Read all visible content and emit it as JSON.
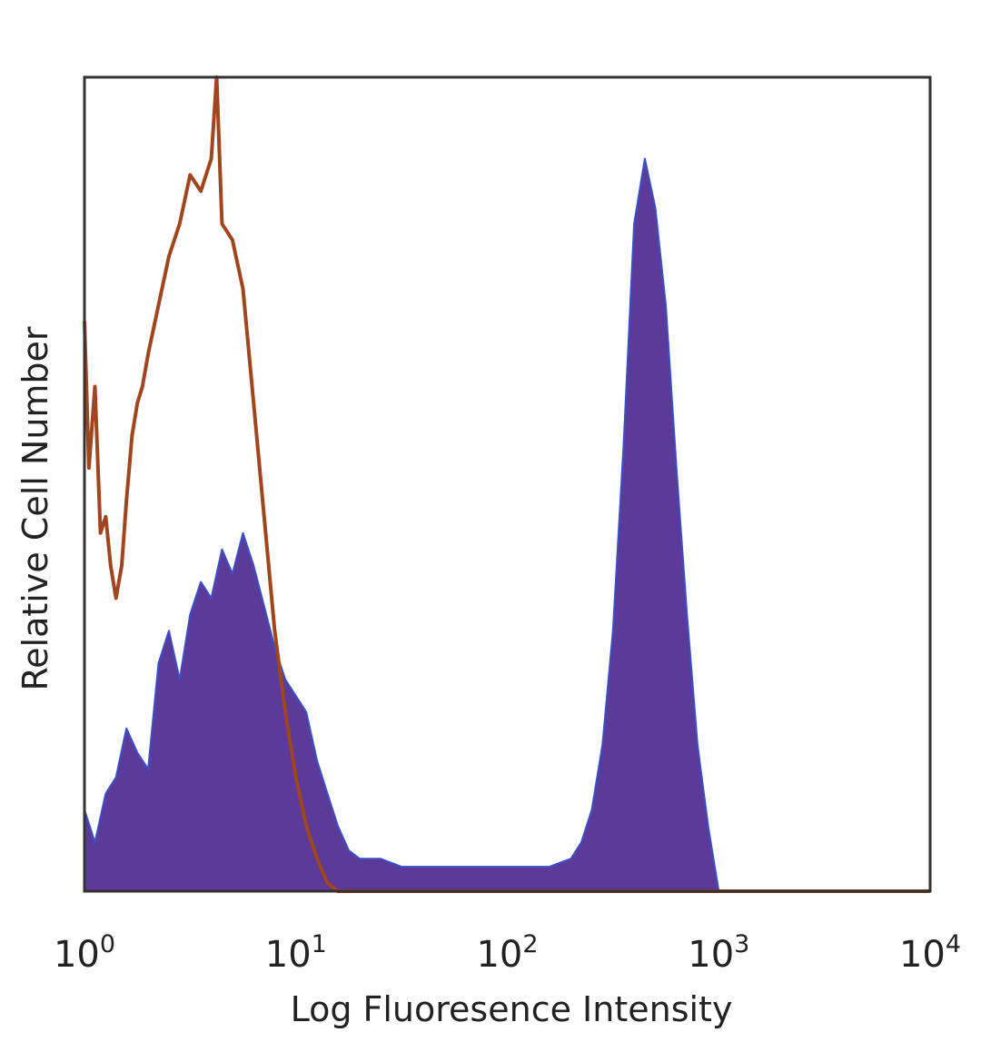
{
  "chart_data": {
    "type": "area",
    "scale": "log",
    "xlabel": "Log Fluoresence Intensity",
    "ylabel": "Relative Cell Number",
    "xlim": [
      1,
      10000
    ],
    "ylim": [
      0,
      100
    ],
    "grid": false,
    "x_ticks": [
      {
        "value": 1,
        "base": "10",
        "exp": "0"
      },
      {
        "value": 10,
        "base": "10",
        "exp": "1"
      },
      {
        "value": 100,
        "base": "10",
        "exp": "2"
      },
      {
        "value": 1000,
        "base": "10",
        "exp": "3"
      },
      {
        "value": 10000,
        "base": "10",
        "exp": "4"
      }
    ],
    "colors": {
      "filled": "#5b3a9a",
      "filled_edge": "#3b4fc0",
      "outline": "#a0461e",
      "frame": "#333333"
    },
    "series": [
      {
        "style": "filled",
        "x": [
          1.0,
          1.12,
          1.26,
          1.41,
          1.58,
          1.78,
          2.0,
          2.24,
          2.51,
          2.82,
          3.16,
          3.55,
          3.98,
          4.47,
          5.01,
          5.62,
          6.31,
          7.08,
          7.94,
          8.91,
          10.0,
          11.2,
          12.6,
          14.1,
          15.8,
          17.8,
          20.0,
          25.1,
          31.6,
          39.8,
          50.1,
          63.1,
          79.4,
          100,
          126,
          158,
          200,
          224,
          251,
          282,
          316,
          355,
          398,
          447,
          501,
          562,
          631,
          708,
          794,
          891,
          1000,
          1259,
          1585,
          2000,
          3162,
          5012,
          7943,
          10000
        ],
        "values": [
          10,
          6,
          12,
          14,
          20,
          17,
          15,
          28,
          32,
          26,
          34,
          38,
          36,
          42,
          39,
          44,
          40,
          35,
          30,
          26,
          24,
          22,
          16,
          12,
          8,
          5,
          4,
          4,
          3,
          3,
          3,
          3,
          3,
          3,
          3,
          3,
          4,
          6,
          10,
          18,
          32,
          55,
          82,
          90,
          84,
          72,
          52,
          34,
          18,
          8,
          0,
          0,
          0,
          0,
          0,
          0,
          0,
          0
        ]
      },
      {
        "style": "outline",
        "x": [
          1.0,
          1.05,
          1.12,
          1.19,
          1.26,
          1.33,
          1.41,
          1.5,
          1.58,
          1.68,
          1.78,
          1.88,
          2.0,
          2.24,
          2.51,
          2.82,
          3.16,
          3.55,
          3.98,
          4.22,
          4.47,
          5.01,
          5.62,
          6.31,
          7.08,
          7.94,
          8.91,
          10.0,
          11.2,
          12.6,
          14.1,
          15.8,
          17.8,
          20.0,
          25.1,
          31.6,
          50.1,
          100,
          1000,
          10000
        ],
        "values": [
          70,
          52,
          62,
          44,
          46,
          40,
          36,
          40,
          48,
          56,
          60,
          62,
          66,
          72,
          78,
          82,
          88,
          86,
          90,
          100,
          82,
          80,
          74,
          60,
          46,
          32,
          22,
          14,
          8,
          4,
          1,
          0,
          0,
          0,
          0,
          0,
          0,
          0,
          0,
          0
        ]
      }
    ]
  }
}
